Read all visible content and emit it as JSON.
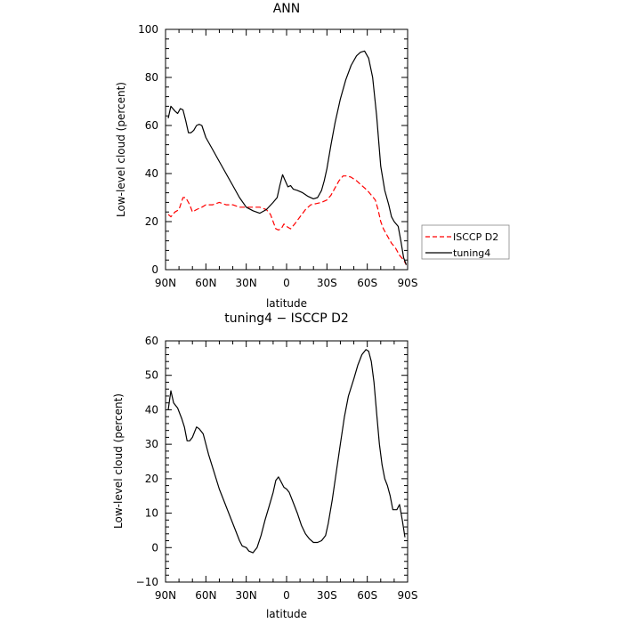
{
  "chart_data": [
    {
      "type": "line",
      "title": "ANN",
      "xlabel": "latitude",
      "ylabel": "Low-level cloud (percent)",
      "x_ticks": [
        "90N",
        "60N",
        "30N",
        "0",
        "30S",
        "60S",
        "90S"
      ],
      "y_ticks": [
        "0",
        "20",
        "40",
        "60",
        "80",
        "100"
      ],
      "xlim": [
        90,
        -90
      ],
      "ylim": [
        0,
        100
      ],
      "legend": {
        "placement": "right",
        "entries": [
          "ISCCP D2",
          "tuning4"
        ]
      },
      "series": [
        {
          "name": "ISCCP D2",
          "color": "#ff0000",
          "style": "dashed",
          "points": [
            [
              88,
              23
            ],
            [
              86,
              22
            ],
            [
              83,
              24
            ],
            [
              80,
              25
            ],
            [
              77,
              30
            ],
            [
              75,
              30
            ],
            [
              72,
              27
            ],
            [
              70,
              24
            ],
            [
              67,
              25
            ],
            [
              63,
              26
            ],
            [
              60,
              27
            ],
            [
              55,
              27
            ],
            [
              50,
              28
            ],
            [
              45,
              27
            ],
            [
              40,
              27
            ],
            [
              35,
              26
            ],
            [
              30,
              26
            ],
            [
              25,
              26
            ],
            [
              20,
              26
            ],
            [
              15,
              25
            ],
            [
              12,
              23
            ],
            [
              10,
              20
            ],
            [
              8,
              17
            ],
            [
              6,
              16.5
            ],
            [
              4,
              17
            ],
            [
              2,
              19
            ],
            [
              0,
              18
            ],
            [
              -3,
              17
            ],
            [
              -6,
              19
            ],
            [
              -10,
              22
            ],
            [
              -14,
              25
            ],
            [
              -18,
              27
            ],
            [
              -22,
              27.5
            ],
            [
              -26,
              28
            ],
            [
              -30,
              29
            ],
            [
              -33,
              31
            ],
            [
              -36,
              34
            ],
            [
              -39,
              37
            ],
            [
              -42,
              39
            ],
            [
              -45,
              39
            ],
            [
              -48,
              38.5
            ],
            [
              -52,
              37
            ],
            [
              -56,
              35
            ],
            [
              -60,
              33
            ],
            [
              -63,
              31
            ],
            [
              -66,
              29
            ],
            [
              -68,
              25
            ],
            [
              -70,
              20
            ],
            [
              -72,
              17
            ],
            [
              -75,
              14
            ],
            [
              -78,
              11
            ],
            [
              -81,
              9
            ],
            [
              -84,
              6
            ],
            [
              -87,
              4
            ],
            [
              -89,
              2
            ]
          ]
        },
        {
          "name": "tuning4",
          "color": "#000000",
          "style": "solid",
          "points": [
            [
              88,
              63
            ],
            [
              86,
              68
            ],
            [
              83,
              66
            ],
            [
              81,
              65
            ],
            [
              79,
              67
            ],
            [
              77,
              66.5
            ],
            [
              75,
              62
            ],
            [
              73,
              57
            ],
            [
              71,
              57
            ],
            [
              69,
              58
            ],
            [
              67,
              60
            ],
            [
              65,
              60.5
            ],
            [
              63,
              60
            ],
            [
              60,
              55
            ],
            [
              55,
              50
            ],
            [
              50,
              45
            ],
            [
              45,
              40
            ],
            [
              40,
              35
            ],
            [
              35,
              30
            ],
            [
              30,
              26
            ],
            [
              25,
              24.5
            ],
            [
              20,
              23.5
            ],
            [
              15,
              25
            ],
            [
              10,
              28
            ],
            [
              7,
              30
            ],
            [
              5,
              35
            ],
            [
              3,
              39.5
            ],
            [
              1,
              37
            ],
            [
              -1,
              34.5
            ],
            [
              -3,
              35
            ],
            [
              -5,
              33.5
            ],
            [
              -8,
              33
            ],
            [
              -12,
              32
            ],
            [
              -16,
              30.5
            ],
            [
              -20,
              29.5
            ],
            [
              -23,
              30
            ],
            [
              -26,
              33
            ],
            [
              -28,
              37
            ],
            [
              -30,
              42
            ],
            [
              -33,
              52
            ],
            [
              -36,
              61
            ],
            [
              -40,
              71
            ],
            [
              -44,
              79
            ],
            [
              -48,
              85
            ],
            [
              -52,
              89
            ],
            [
              -55,
              90.5
            ],
            [
              -58,
              91
            ],
            [
              -61,
              88
            ],
            [
              -64,
              80
            ],
            [
              -67,
              64
            ],
            [
              -70,
              43
            ],
            [
              -73,
              33
            ],
            [
              -76,
              27
            ],
            [
              -78,
              22
            ],
            [
              -80,
              20
            ],
            [
              -83,
              18
            ],
            [
              -85,
              12
            ],
            [
              -87,
              5
            ],
            [
              -89,
              2
            ]
          ]
        }
      ]
    },
    {
      "type": "line",
      "title": "tuning4 − ISCCP D2",
      "xlabel": "latitude",
      "ylabel": "Low-level cloud (percent)",
      "x_ticks": [
        "90N",
        "60N",
        "30N",
        "0",
        "30S",
        "60S",
        "90S"
      ],
      "y_ticks": [
        "−10",
        "0",
        "10",
        "20",
        "30",
        "40",
        "50",
        "60"
      ],
      "xlim": [
        90,
        -90
      ],
      "ylim": [
        -10,
        60
      ],
      "series": [
        {
          "color": "#000000",
          "style": "solid",
          "points": [
            [
              88,
              40
            ],
            [
              86,
              45.5
            ],
            [
              84,
              42
            ],
            [
              81,
              40.5
            ],
            [
              78,
              37.5
            ],
            [
              76,
              35
            ],
            [
              74,
              31
            ],
            [
              72,
              31
            ],
            [
              70,
              32
            ],
            [
              67,
              35
            ],
            [
              65,
              34.5
            ],
            [
              62,
              33
            ],
            [
              58,
              27
            ],
            [
              54,
              22
            ],
            [
              50,
              17
            ],
            [
              46,
              13
            ],
            [
              42,
              9
            ],
            [
              38,
              5
            ],
            [
              35,
              2
            ],
            [
              33,
              0.5
            ],
            [
              30,
              0
            ],
            [
              28,
              -1
            ],
            [
              25,
              -1.5
            ],
            [
              22,
              0
            ],
            [
              19,
              3.5
            ],
            [
              16,
              8
            ],
            [
              13,
              12
            ],
            [
              10,
              16
            ],
            [
              8,
              19.5
            ],
            [
              6,
              20.5
            ],
            [
              4,
              19
            ],
            [
              2,
              17.5
            ],
            [
              0,
              17
            ],
            [
              -2,
              16
            ],
            [
              -5,
              13
            ],
            [
              -8,
              10
            ],
            [
              -11,
              6.5
            ],
            [
              -14,
              4
            ],
            [
              -17,
              2.5
            ],
            [
              -20,
              1.5
            ],
            [
              -23,
              1.5
            ],
            [
              -26,
              2
            ],
            [
              -29,
              3.5
            ],
            [
              -31,
              7
            ],
            [
              -34,
              14
            ],
            [
              -37,
              22
            ],
            [
              -40,
              30
            ],
            [
              -43,
              38
            ],
            [
              -46,
              44
            ],
            [
              -50,
              49
            ],
            [
              -53,
              53
            ],
            [
              -56,
              56
            ],
            [
              -59,
              57.5
            ],
            [
              -61,
              57
            ],
            [
              -63,
              54
            ],
            [
              -65,
              48
            ],
            [
              -67,
              39
            ],
            [
              -69,
              30
            ],
            [
              -71,
              24
            ],
            [
              -73,
              20
            ],
            [
              -75,
              18
            ],
            [
              -77,
              15
            ],
            [
              -79,
              11
            ],
            [
              -82,
              11
            ],
            [
              -84,
              12.5
            ],
            [
              -86,
              8
            ],
            [
              -88,
              3
            ]
          ]
        }
      ]
    }
  ]
}
